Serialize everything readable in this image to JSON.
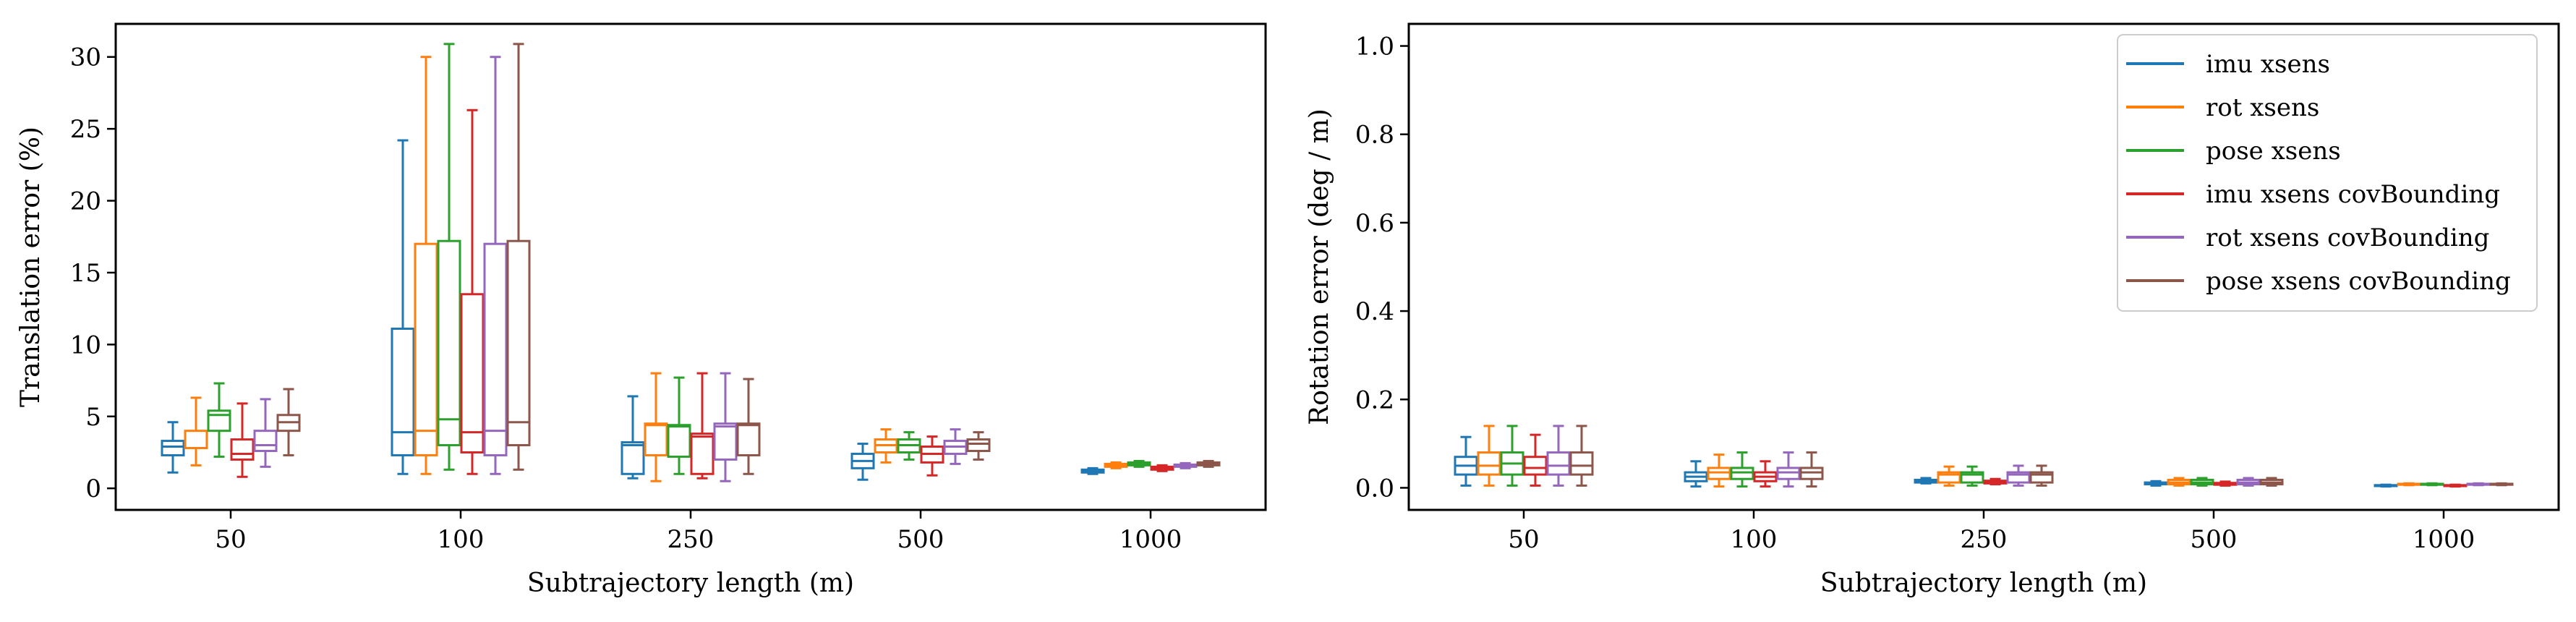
{
  "chart_data": [
    {
      "type": "box",
      "xlabel": "Subtrajectory length (m)",
      "ylabel": "Translation error (%)",
      "ylim": [
        -1.5,
        32.3
      ],
      "yticks": [
        0,
        5,
        10,
        15,
        20,
        25,
        30
      ],
      "categories": [
        "50",
        "100",
        "250",
        "500",
        "1000"
      ],
      "grid": false,
      "series": [
        {
          "name": "imu xsens",
          "color": "#1f77b4",
          "boxes": [
            {
              "whislo": 1.1,
              "q1": 2.3,
              "med": 2.9,
              "q3": 3.3,
              "whishi": 4.6
            },
            {
              "whislo": 1.0,
              "q1": 2.3,
              "med": 3.9,
              "q3": 11.1,
              "whishi": 24.2
            },
            {
              "whislo": 0.7,
              "q1": 1.0,
              "med": 3.0,
              "q3": 3.2,
              "whishi": 6.4
            },
            {
              "whislo": 0.6,
              "q1": 1.4,
              "med": 1.9,
              "q3": 2.4,
              "whishi": 3.1
            },
            {
              "whislo": 1.0,
              "q1": 1.1,
              "med": 1.2,
              "q3": 1.3,
              "whishi": 1.4
            }
          ]
        },
        {
          "name": "rot xsens",
          "color": "#ff7f0e",
          "boxes": [
            {
              "whislo": 1.6,
              "q1": 2.8,
              "med": 2.8,
              "q3": 4.0,
              "whishi": 6.3
            },
            {
              "whislo": 1.0,
              "q1": 2.3,
              "med": 4.0,
              "q3": 17.0,
              "whishi": 30.0
            },
            {
              "whislo": 0.5,
              "q1": 2.3,
              "med": 4.4,
              "q3": 4.5,
              "whishi": 8.0
            },
            {
              "whislo": 1.8,
              "q1": 2.5,
              "med": 3.0,
              "q3": 3.4,
              "whishi": 4.1
            },
            {
              "whislo": 1.4,
              "q1": 1.5,
              "med": 1.6,
              "q3": 1.7,
              "whishi": 1.8
            }
          ]
        },
        {
          "name": "pose xsens",
          "color": "#2ca02c",
          "boxes": [
            {
              "whislo": 2.2,
              "q1": 4.0,
              "med": 5.1,
              "q3": 5.4,
              "whishi": 7.3
            },
            {
              "whislo": 1.3,
              "q1": 3.0,
              "med": 4.8,
              "q3": 17.2,
              "whishi": 30.9
            },
            {
              "whislo": 1.0,
              "q1": 2.2,
              "med": 4.3,
              "q3": 4.4,
              "whishi": 7.7
            },
            {
              "whislo": 2.0,
              "q1": 2.5,
              "med": 3.0,
              "q3": 3.4,
              "whishi": 3.9
            },
            {
              "whislo": 1.5,
              "q1": 1.6,
              "med": 1.7,
              "q3": 1.8,
              "whishi": 1.9
            }
          ]
        },
        {
          "name": "imu xsens covBounding",
          "color": "#d62728",
          "boxes": [
            {
              "whislo": 0.8,
              "q1": 2.0,
              "med": 2.4,
              "q3": 3.4,
              "whishi": 5.9
            },
            {
              "whislo": 1.0,
              "q1": 2.5,
              "med": 3.9,
              "q3": 13.5,
              "whishi": 26.3
            },
            {
              "whislo": 0.7,
              "q1": 1.0,
              "med": 3.6,
              "q3": 3.8,
              "whishi": 8.0
            },
            {
              "whislo": 0.9,
              "q1": 1.8,
              "med": 2.4,
              "q3": 2.9,
              "whishi": 3.6
            },
            {
              "whislo": 1.2,
              "q1": 1.3,
              "med": 1.4,
              "q3": 1.5,
              "whishi": 1.6
            }
          ]
        },
        {
          "name": "rot xsens covBounding",
          "color": "#9467bd",
          "boxes": [
            {
              "whislo": 1.5,
              "q1": 2.6,
              "med": 3.0,
              "q3": 4.0,
              "whishi": 6.2
            },
            {
              "whislo": 1.0,
              "q1": 2.3,
              "med": 4.0,
              "q3": 17.0,
              "whishi": 30.0
            },
            {
              "whislo": 0.5,
              "q1": 2.0,
              "med": 4.3,
              "q3": 4.5,
              "whishi": 8.0
            },
            {
              "whislo": 1.7,
              "q1": 2.4,
              "med": 2.9,
              "q3": 3.3,
              "whishi": 4.1
            },
            {
              "whislo": 1.4,
              "q1": 1.5,
              "med": 1.55,
              "q3": 1.65,
              "whishi": 1.75
            }
          ]
        },
        {
          "name": "pose xsens covBounding",
          "color": "#8c564b",
          "boxes": [
            {
              "whislo": 2.3,
              "q1": 4.0,
              "med": 4.6,
              "q3": 5.1,
              "whishi": 6.9
            },
            {
              "whislo": 1.3,
              "q1": 3.0,
              "med": 4.6,
              "q3": 17.2,
              "whishi": 30.9
            },
            {
              "whislo": 1.0,
              "q1": 2.3,
              "med": 4.4,
              "q3": 4.5,
              "whishi": 7.6
            },
            {
              "whislo": 2.0,
              "q1": 2.6,
              "med": 3.1,
              "q3": 3.4,
              "whishi": 3.9
            },
            {
              "whislo": 1.5,
              "q1": 1.6,
              "med": 1.7,
              "q3": 1.8,
              "whishi": 1.9
            }
          ]
        }
      ]
    },
    {
      "type": "box",
      "xlabel": "Subtrajectory length (m)",
      "ylabel": "Rotation error (deg / m)",
      "ylim": [
        -0.05,
        1.05
      ],
      "yticks": [
        0.0,
        0.2,
        0.4,
        0.6,
        0.8,
        1.0
      ],
      "categories": [
        "50",
        "100",
        "250",
        "500",
        "1000"
      ],
      "grid": false,
      "legend": "top-right",
      "series": [
        {
          "name": "imu xsens",
          "color": "#1f77b4",
          "boxes": [
            {
              "whislo": 0.005,
              "q1": 0.03,
              "med": 0.05,
              "q3": 0.07,
              "whishi": 0.115
            },
            {
              "whislo": 0.003,
              "q1": 0.015,
              "med": 0.025,
              "q3": 0.035,
              "whishi": 0.06
            },
            {
              "whislo": 0.01,
              "q1": 0.012,
              "med": 0.015,
              "q3": 0.018,
              "whishi": 0.022
            },
            {
              "whislo": 0.005,
              "q1": 0.008,
              "med": 0.01,
              "q3": 0.012,
              "whishi": 0.015
            },
            {
              "whislo": 0.003,
              "q1": 0.004,
              "med": 0.005,
              "q3": 0.006,
              "whishi": 0.007
            }
          ]
        },
        {
          "name": "rot xsens",
          "color": "#ff7f0e",
          "boxes": [
            {
              "whislo": 0.005,
              "q1": 0.03,
              "med": 0.05,
              "q3": 0.08,
              "whishi": 0.14
            },
            {
              "whislo": 0.003,
              "q1": 0.02,
              "med": 0.035,
              "q3": 0.045,
              "whishi": 0.075
            },
            {
              "whislo": 0.005,
              "q1": 0.012,
              "med": 0.03,
              "q3": 0.035,
              "whishi": 0.048
            },
            {
              "whislo": 0.005,
              "q1": 0.008,
              "med": 0.012,
              "q3": 0.018,
              "whishi": 0.022
            },
            {
              "whislo": 0.006,
              "q1": 0.007,
              "med": 0.008,
              "q3": 0.009,
              "whishi": 0.01
            }
          ]
        },
        {
          "name": "pose xsens",
          "color": "#2ca02c",
          "boxes": [
            {
              "whislo": 0.005,
              "q1": 0.03,
              "med": 0.055,
              "q3": 0.08,
              "whishi": 0.14
            },
            {
              "whislo": 0.003,
              "q1": 0.02,
              "med": 0.035,
              "q3": 0.045,
              "whishi": 0.08
            },
            {
              "whislo": 0.005,
              "q1": 0.012,
              "med": 0.03,
              "q3": 0.035,
              "whishi": 0.048
            },
            {
              "whislo": 0.005,
              "q1": 0.008,
              "med": 0.012,
              "q3": 0.018,
              "whishi": 0.022
            },
            {
              "whislo": 0.006,
              "q1": 0.007,
              "med": 0.008,
              "q3": 0.009,
              "whishi": 0.01
            }
          ]
        },
        {
          "name": "imu xsens covBounding",
          "color": "#d62728",
          "boxes": [
            {
              "whislo": 0.005,
              "q1": 0.03,
              "med": 0.045,
              "q3": 0.07,
              "whishi": 0.12
            },
            {
              "whislo": 0.003,
              "q1": 0.015,
              "med": 0.025,
              "q3": 0.035,
              "whishi": 0.06
            },
            {
              "whislo": 0.008,
              "q1": 0.01,
              "med": 0.013,
              "q3": 0.016,
              "whishi": 0.02
            },
            {
              "whislo": 0.005,
              "q1": 0.007,
              "med": 0.009,
              "q3": 0.011,
              "whishi": 0.014
            },
            {
              "whislo": 0.003,
              "q1": 0.004,
              "med": 0.005,
              "q3": 0.006,
              "whishi": 0.007
            }
          ]
        },
        {
          "name": "rot xsens covBounding",
          "color": "#9467bd",
          "boxes": [
            {
              "whislo": 0.005,
              "q1": 0.03,
              "med": 0.05,
              "q3": 0.08,
              "whishi": 0.14
            },
            {
              "whislo": 0.003,
              "q1": 0.02,
              "med": 0.035,
              "q3": 0.045,
              "whishi": 0.08
            },
            {
              "whislo": 0.005,
              "q1": 0.012,
              "med": 0.03,
              "q3": 0.035,
              "whishi": 0.05
            },
            {
              "whislo": 0.005,
              "q1": 0.008,
              "med": 0.012,
              "q3": 0.018,
              "whishi": 0.022
            },
            {
              "whislo": 0.006,
              "q1": 0.007,
              "med": 0.008,
              "q3": 0.009,
              "whishi": 0.01
            }
          ]
        },
        {
          "name": "pose xsens covBounding",
          "color": "#8c564b",
          "boxes": [
            {
              "whislo": 0.005,
              "q1": 0.03,
              "med": 0.05,
              "q3": 0.08,
              "whishi": 0.14
            },
            {
              "whislo": 0.003,
              "q1": 0.02,
              "med": 0.035,
              "q3": 0.045,
              "whishi": 0.08
            },
            {
              "whislo": 0.005,
              "q1": 0.012,
              "med": 0.03,
              "q3": 0.035,
              "whishi": 0.05
            },
            {
              "whislo": 0.005,
              "q1": 0.008,
              "med": 0.012,
              "q3": 0.018,
              "whishi": 0.022
            },
            {
              "whislo": 0.006,
              "q1": 0.007,
              "med": 0.008,
              "q3": 0.009,
              "whishi": 0.01
            }
          ]
        }
      ]
    }
  ]
}
